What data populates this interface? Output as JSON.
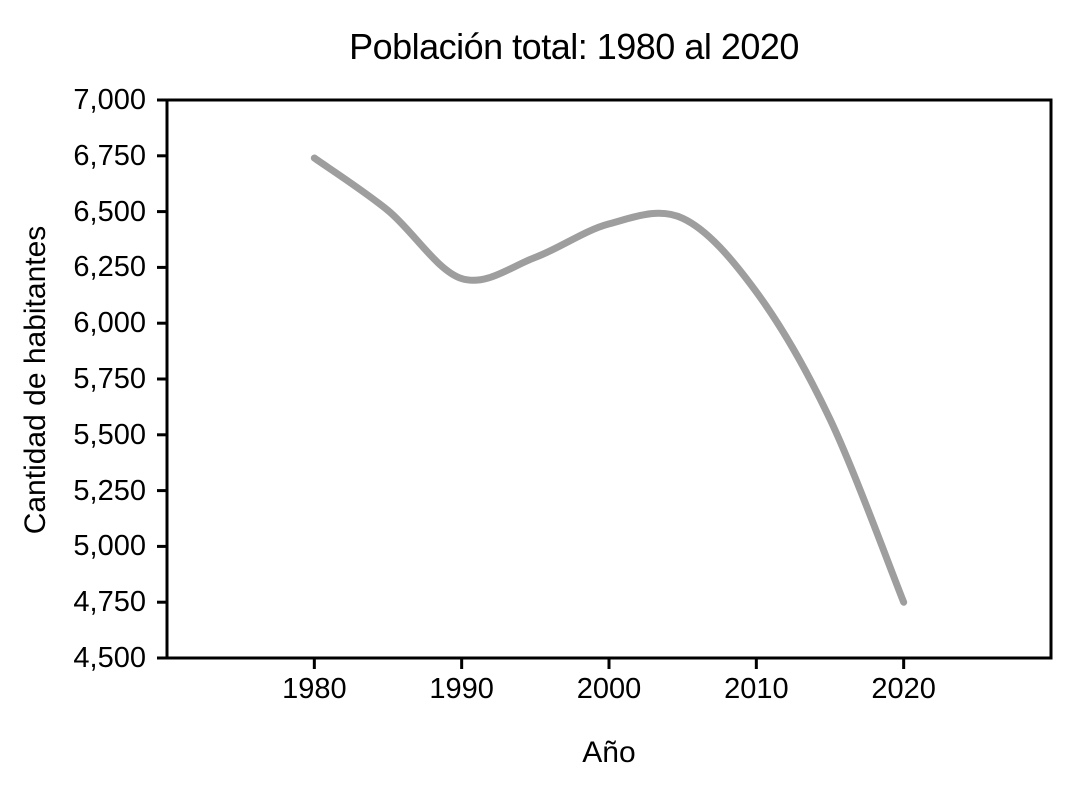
{
  "figure": {
    "title": "Población total: 1980 al 2020",
    "x_axis_label": "Año",
    "y_axis_label": "Cantidad de habitantes"
  },
  "chart_data": {
    "type": "line",
    "title": "Población total: 1980 al 2020",
    "xlabel": "Año",
    "ylabel": "Cantidad de habitantes",
    "x": [
      1980,
      1985,
      1990,
      1995,
      2000,
      2005,
      2010,
      2015,
      2020
    ],
    "values": [
      6740,
      6505,
      6200,
      6295,
      6445,
      6470,
      6140,
      5570,
      4750
    ],
    "xlim": [
      1970,
      2030
    ],
    "ylim": [
      4500,
      7000
    ],
    "x_tick_values": [
      1980,
      1990,
      2000,
      2010,
      2020
    ],
    "x_tick_labels": [
      "1980",
      "1990",
      "2000",
      "2010",
      "2020"
    ],
    "y_tick_values": [
      4500,
      4750,
      5000,
      5250,
      5500,
      5750,
      6000,
      6250,
      6500,
      6750,
      7000
    ],
    "y_tick_labels": [
      "4,500",
      "4,750",
      "5,000",
      "5,250",
      "5,500",
      "5,750",
      "6,000",
      "6,250",
      "6,500",
      "6,750",
      "7,000"
    ],
    "grid": false,
    "legend": "none",
    "smooth": true,
    "line_color": "#9e9e9e",
    "line_width": 7,
    "axis_color": "#000000",
    "background": "#ffffff"
  }
}
